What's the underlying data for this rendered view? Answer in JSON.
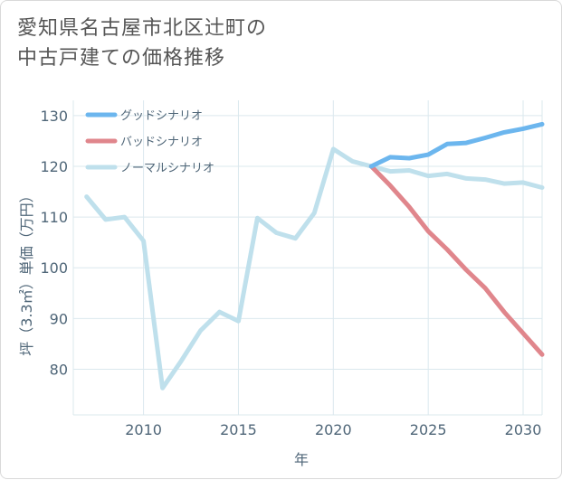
{
  "title": {
    "line1": "愛知県名古屋市北区辻町の",
    "line2": "中古戸建ての価格推移"
  },
  "chart_data": {
    "type": "line",
    "xlabel": "年",
    "ylabel": "坪（3.3㎡）単価（万円）",
    "xlim": [
      2006.3,
      2031
    ],
    "ylim": [
      71,
      133
    ],
    "x_ticks": [
      2010,
      2015,
      2020,
      2025,
      2030
    ],
    "y_ticks": [
      80,
      90,
      100,
      110,
      120,
      130
    ],
    "grid": true,
    "legend_position": "top-left",
    "series": [
      {
        "name": "グッドシナリオ",
        "color": "#6cb6ee",
        "points": [
          [
            2022,
            120.0
          ],
          [
            2023,
            121.8
          ],
          [
            2024,
            121.6
          ],
          [
            2025,
            122.3
          ],
          [
            2026,
            124.4
          ],
          [
            2027,
            124.6
          ],
          [
            2028,
            125.6
          ],
          [
            2029,
            126.7
          ],
          [
            2030,
            127.4
          ],
          [
            2031,
            128.3
          ]
        ]
      },
      {
        "name": "バッドシナリオ",
        "color": "#e0868c",
        "points": [
          [
            2022,
            120.0
          ],
          [
            2023,
            116.2
          ],
          [
            2024,
            112.0
          ],
          [
            2025,
            107.2
          ],
          [
            2026,
            103.6
          ],
          [
            2027,
            99.6
          ],
          [
            2028,
            96.0
          ],
          [
            2029,
            91.3
          ],
          [
            2030,
            87.1
          ],
          [
            2031,
            82.9
          ]
        ]
      },
      {
        "name": "ノーマルシナリオ",
        "color": "#bfe0ec",
        "points": [
          [
            2007,
            114.0
          ],
          [
            2008,
            109.5
          ],
          [
            2009,
            110.0
          ],
          [
            2010,
            105.3
          ],
          [
            2011,
            76.3
          ],
          [
            2012,
            81.7
          ],
          [
            2013,
            87.6
          ],
          [
            2014,
            91.3
          ],
          [
            2015,
            89.5
          ],
          [
            2016,
            109.8
          ],
          [
            2017,
            106.9
          ],
          [
            2018,
            105.8
          ],
          [
            2019,
            110.8
          ],
          [
            2020,
            123.4
          ],
          [
            2021,
            121.0
          ],
          [
            2022,
            120.0
          ],
          [
            2023,
            119.0
          ],
          [
            2024,
            119.2
          ],
          [
            2025,
            118.1
          ],
          [
            2026,
            118.5
          ],
          [
            2027,
            117.6
          ],
          [
            2028,
            117.4
          ],
          [
            2029,
            116.6
          ],
          [
            2030,
            116.8
          ],
          [
            2031,
            115.8
          ]
        ]
      }
    ]
  }
}
